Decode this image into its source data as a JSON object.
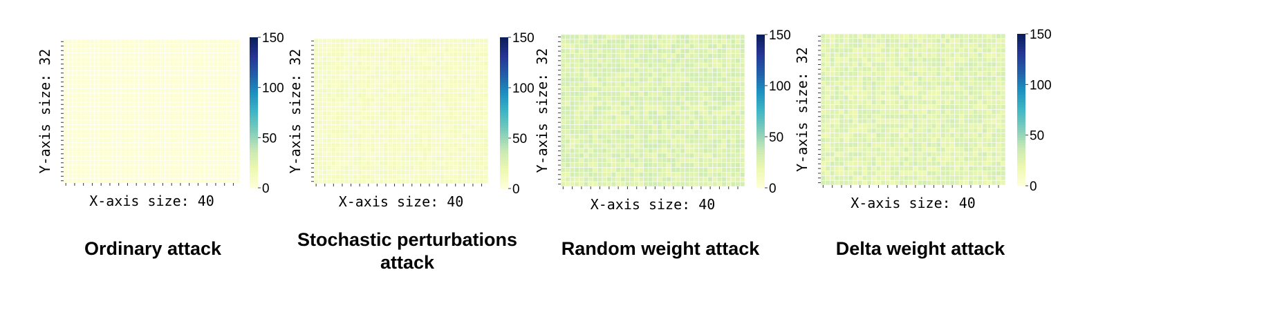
{
  "chart_data": [
    {
      "type": "heatmap",
      "caption": "Ordinary attack",
      "xlabel": "X-axis size: 40",
      "ylabel": "Y-axis size: 32",
      "grid_size": [
        40,
        32
      ],
      "color_range": [
        0,
        150
      ],
      "colorbar_ticks": [
        0,
        50,
        100,
        150
      ],
      "cell_value_approx": 2
    },
    {
      "type": "heatmap",
      "caption": "Stochastic perturbations attack",
      "xlabel": "X-axis size: 40",
      "ylabel": "Y-axis size: 32",
      "grid_size": [
        40,
        32
      ],
      "color_range": [
        0,
        150
      ],
      "colorbar_ticks": [
        0,
        50,
        100,
        150
      ],
      "cell_value_approx": 10
    },
    {
      "type": "heatmap",
      "caption": "Random weight attack",
      "xlabel": "X-axis size: 40",
      "ylabel": "Y-axis size: 32",
      "grid_size": [
        40,
        32
      ],
      "color_range": [
        0,
        150
      ],
      "colorbar_ticks": [
        0,
        50,
        100,
        150
      ],
      "cell_value_approx": 27
    },
    {
      "type": "heatmap",
      "caption": "Delta weight attack",
      "xlabel": "X-axis size: 40",
      "ylabel": "Y-axis size: 32",
      "grid_size": [
        40,
        32
      ],
      "color_range": [
        0,
        150
      ],
      "colorbar_ticks": [
        0,
        50,
        100,
        150
      ],
      "cell_value_approx": 25
    }
  ],
  "colormap": [
    "#ffffd9",
    "#edf8b1",
    "#c7e9b4",
    "#7fcdbb",
    "#41b6c4",
    "#1d91c0",
    "#225ea8",
    "#253494",
    "#081d58"
  ]
}
